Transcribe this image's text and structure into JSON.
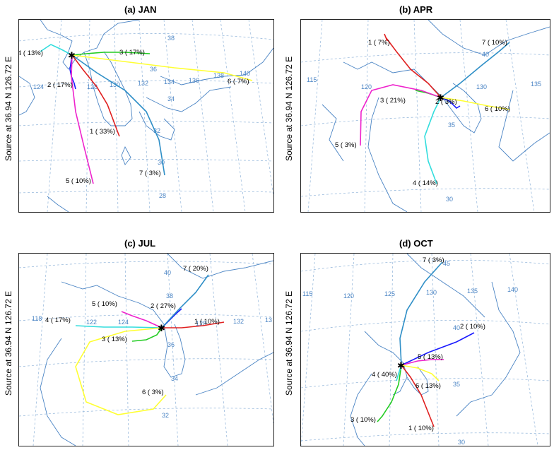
{
  "source": {
    "text": "Source   at   36.94 N  126.72 E"
  },
  "colors": {
    "coastline": "#4a84c4",
    "grid": "#8fb3d9",
    "t1": "#e02020",
    "t2": "#1a1aff",
    "t3": "#22cc22",
    "t4": "#33dddd",
    "t5": "#ee22cc",
    "t6": "#ffff33",
    "t7": "#2f8fc7"
  },
  "panels": [
    {
      "title": "(a) JAN",
      "grid_labels": [
        "38",
        "36",
        "34",
        "32",
        "30",
        "28",
        "124",
        "128",
        "130",
        "132",
        "134",
        "136",
        "138",
        "140"
      ],
      "trajectories": [
        {
          "id": "t1",
          "label": "1 ( 33%)"
        },
        {
          "id": "t2",
          "label": "2 ( 17%)"
        },
        {
          "id": "t3",
          "label": "3 ( 17%)"
        },
        {
          "id": "t4",
          "label": "4 ( 13%)"
        },
        {
          "id": "t5",
          "label": "5 ( 10%)"
        },
        {
          "id": "t6",
          "label": "6 (  7%)"
        },
        {
          "id": "t7",
          "label": "7 (  3%)"
        }
      ]
    },
    {
      "title": "(b) APR",
      "grid_labels": [
        "115",
        "120",
        "130",
        "135",
        "40",
        "35",
        "30"
      ],
      "trajectories": [
        {
          "id": "t1",
          "label": "1 (  7%)"
        },
        {
          "id": "t2",
          "label": "2 ( 3%)"
        },
        {
          "id": "t3",
          "label": "3 ( 21%)"
        },
        {
          "id": "t4",
          "label": "4 ( 14%)"
        },
        {
          "id": "t5",
          "label": "5 (  3%)"
        },
        {
          "id": "t6",
          "label": "6 ( 10%)"
        },
        {
          "id": "t7",
          "label": "7 ( 10%)"
        }
      ]
    },
    {
      "title": "(c) JUL",
      "grid_labels": [
        "118",
        "122",
        "124",
        "128",
        "132",
        "13",
        "40",
        "38",
        "36",
        "34",
        "32"
      ],
      "trajectories": [
        {
          "id": "t1",
          "label": "1 ( 10%)"
        },
        {
          "id": "t2",
          "label": "2 ( 27%)"
        },
        {
          "id": "t3",
          "label": "3 ( 13%)"
        },
        {
          "id": "t4",
          "label": "4 ( 17%)"
        },
        {
          "id": "t5",
          "label": "5 ( 10%)"
        },
        {
          "id": "t6",
          "label": "6 (  3%)"
        },
        {
          "id": "t7",
          "label": "7 ( 20%)"
        }
      ]
    },
    {
      "title": "(d) OCT",
      "grid_labels": [
        "115",
        "120",
        "125",
        "130",
        "135",
        "140",
        "45",
        "40",
        "35",
        "30"
      ],
      "trajectories": [
        {
          "id": "t1",
          "label": "1 ( 10%)"
        },
        {
          "id": "t2",
          "label": "2 ( 10%)"
        },
        {
          "id": "t3",
          "label": "3 ( 10%)"
        },
        {
          "id": "t4",
          "label": "4 ( 40%)"
        },
        {
          "id": "t5",
          "label": "5 ( 13%)"
        },
        {
          "id": "t6",
          "label": "6 ( 13%)"
        },
        {
          "id": "t7",
          "label": "7 (  3%)"
        }
      ]
    }
  ]
}
